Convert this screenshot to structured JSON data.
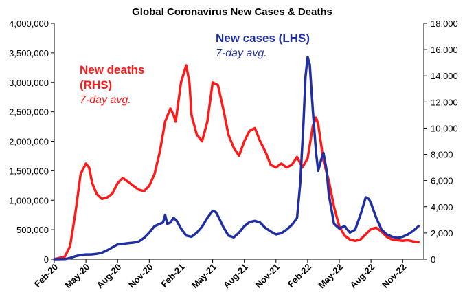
{
  "chart_data": {
    "type": "line",
    "title": "Global Coronavirus New Cases & Deaths",
    "x_ticks": [
      "Feb-20",
      "May-20",
      "Aug-20",
      "Nov-20",
      "Feb-21",
      "May-21",
      "Aug-21",
      "Nov-21",
      "Feb-22",
      "May-22",
      "Aug-22",
      "Nov-22"
    ],
    "x_range": [
      0,
      35
    ],
    "y_left": {
      "range": [
        0,
        4000000
      ],
      "ticks": [
        0,
        500000,
        1000000,
        1500000,
        2000000,
        2500000,
        3000000,
        3500000,
        4000000
      ],
      "tick_labels": [
        "0",
        "500,000",
        "1,000,000",
        "1,500,000",
        "2,000,000",
        "2,500,000",
        "3,000,000",
        "3,500,000",
        "4,000,000"
      ]
    },
    "y_right": {
      "range": [
        0,
        18000
      ],
      "ticks": [
        0,
        2000,
        4000,
        6000,
        8000,
        10000,
        12000,
        14000,
        16000,
        18000
      ],
      "tick_labels": [
        "0",
        "2,000",
        "4,000",
        "6,000",
        "8,000",
        "10,000",
        "12,000",
        "14,000",
        "16,000",
        "18,000"
      ]
    },
    "grid": false,
    "series": [
      {
        "name": "New cases (LHS)",
        "subtitle": "7-day avg.",
        "axis": "left",
        "color": "#1f2fa3",
        "points": [
          [
            0,
            0
          ],
          [
            1,
            2000
          ],
          [
            1.5,
            20000
          ],
          [
            2,
            50000
          ],
          [
            2.5,
            70000
          ],
          [
            3,
            80000
          ],
          [
            3.5,
            80000
          ],
          [
            4,
            90000
          ],
          [
            4.5,
            110000
          ],
          [
            5,
            150000
          ],
          [
            5.5,
            200000
          ],
          [
            6,
            250000
          ],
          [
            6.5,
            260000
          ],
          [
            7,
            270000
          ],
          [
            7.5,
            280000
          ],
          [
            8,
            300000
          ],
          [
            8.5,
            360000
          ],
          [
            9,
            450000
          ],
          [
            9.5,
            560000
          ],
          [
            10,
            600000
          ],
          [
            10.3,
            620000
          ],
          [
            10.5,
            750000
          ],
          [
            10.7,
            600000
          ],
          [
            11,
            620000
          ],
          [
            11.3,
            700000
          ],
          [
            11.6,
            650000
          ],
          [
            12,
            520000
          ],
          [
            12.5,
            400000
          ],
          [
            13,
            380000
          ],
          [
            13.5,
            450000
          ],
          [
            14,
            550000
          ],
          [
            14.5,
            700000
          ],
          [
            15,
            820000
          ],
          [
            15.3,
            800000
          ],
          [
            15.6,
            700000
          ],
          [
            16,
            550000
          ],
          [
            16.5,
            400000
          ],
          [
            17,
            370000
          ],
          [
            17.5,
            450000
          ],
          [
            18,
            560000
          ],
          [
            18.5,
            630000
          ],
          [
            19,
            650000
          ],
          [
            19.5,
            620000
          ],
          [
            20,
            530000
          ],
          [
            20.5,
            470000
          ],
          [
            21,
            420000
          ],
          [
            21.5,
            440000
          ],
          [
            22,
            500000
          ],
          [
            22.5,
            580000
          ],
          [
            23,
            700000
          ],
          [
            23.3,
            1300000
          ],
          [
            23.6,
            2300000
          ],
          [
            23.8,
            3100000
          ],
          [
            24,
            3430000
          ],
          [
            24.2,
            3300000
          ],
          [
            24.5,
            2500000
          ],
          [
            24.8,
            1800000
          ],
          [
            25,
            1500000
          ],
          [
            25.3,
            1700000
          ],
          [
            25.5,
            1800000
          ],
          [
            25.8,
            1500000
          ],
          [
            26,
            1100000
          ],
          [
            26.5,
            600000
          ],
          [
            27,
            520000
          ],
          [
            27.5,
            560000
          ],
          [
            28,
            450000
          ],
          [
            28.5,
            500000
          ],
          [
            29,
            750000
          ],
          [
            29.5,
            1050000
          ],
          [
            29.8,
            1020000
          ],
          [
            30,
            950000
          ],
          [
            30.5,
            700000
          ],
          [
            31,
            500000
          ],
          [
            31.5,
            420000
          ],
          [
            32,
            380000
          ],
          [
            32.5,
            360000
          ],
          [
            33,
            380000
          ],
          [
            33.5,
            420000
          ],
          [
            34,
            480000
          ],
          [
            34.5,
            560000
          ]
        ]
      },
      {
        "name": "New deaths (RHS)",
        "subtitle": "7-day avg.",
        "axis": "right",
        "color": "#ff1a1a",
        "points": [
          [
            0,
            0
          ],
          [
            0.5,
            100
          ],
          [
            1,
            200
          ],
          [
            1.5,
            1000
          ],
          [
            2,
            3500
          ],
          [
            2.5,
            6500
          ],
          [
            3,
            7300
          ],
          [
            3.3,
            7000
          ],
          [
            3.6,
            5800
          ],
          [
            4,
            5000
          ],
          [
            4.5,
            4600
          ],
          [
            5,
            4700
          ],
          [
            5.5,
            5000
          ],
          [
            6,
            5800
          ],
          [
            6.5,
            6200
          ],
          [
            7,
            5900
          ],
          [
            7.5,
            5600
          ],
          [
            8,
            5300
          ],
          [
            8.5,
            5200
          ],
          [
            9,
            5600
          ],
          [
            9.5,
            6500
          ],
          [
            10,
            8200
          ],
          [
            10.5,
            10500
          ],
          [
            11,
            11500
          ],
          [
            11.3,
            11000
          ],
          [
            11.5,
            10500
          ],
          [
            12,
            13500
          ],
          [
            12.5,
            14800
          ],
          [
            12.8,
            13500
          ],
          [
            13,
            11000
          ],
          [
            13.5,
            9500
          ],
          [
            14,
            9000
          ],
          [
            14.5,
            10500
          ],
          [
            15,
            13500
          ],
          [
            15.5,
            13300
          ],
          [
            16,
            11500
          ],
          [
            16.5,
            9500
          ],
          [
            17,
            8500
          ],
          [
            17.5,
            7900
          ],
          [
            18,
            9000
          ],
          [
            18.5,
            9800
          ],
          [
            19,
            10000
          ],
          [
            19.5,
            9000
          ],
          [
            20,
            8200
          ],
          [
            20.5,
            7200
          ],
          [
            21,
            7000
          ],
          [
            21.5,
            7300
          ],
          [
            22,
            7000
          ],
          [
            22.5,
            7200
          ],
          [
            23,
            7800
          ],
          [
            23.5,
            7000
          ],
          [
            24,
            7700
          ],
          [
            24.5,
            10200
          ],
          [
            24.8,
            10800
          ],
          [
            25,
            10300
          ],
          [
            25.5,
            7500
          ],
          [
            26,
            6000
          ],
          [
            26.5,
            4000
          ],
          [
            27,
            2500
          ],
          [
            27.5,
            1800
          ],
          [
            28,
            1500
          ],
          [
            28.5,
            1400
          ],
          [
            29,
            1500
          ],
          [
            29.5,
            1900
          ],
          [
            30,
            2300
          ],
          [
            30.5,
            2400
          ],
          [
            31,
            2100
          ],
          [
            31.5,
            1700
          ],
          [
            32,
            1500
          ],
          [
            32.5,
            1450
          ],
          [
            33,
            1400
          ],
          [
            33.5,
            1450
          ],
          [
            34,
            1350
          ],
          [
            34.5,
            1300
          ]
        ]
      }
    ],
    "annotations": [
      {
        "text": "New cases (LHS)",
        "series": 0
      },
      {
        "text": "7-day avg.",
        "series": 0
      },
      {
        "text": "New deaths",
        "series": 1
      },
      {
        "text": "(RHS)",
        "series": 1
      },
      {
        "text": "7-day avg.",
        "series": 1
      }
    ]
  }
}
